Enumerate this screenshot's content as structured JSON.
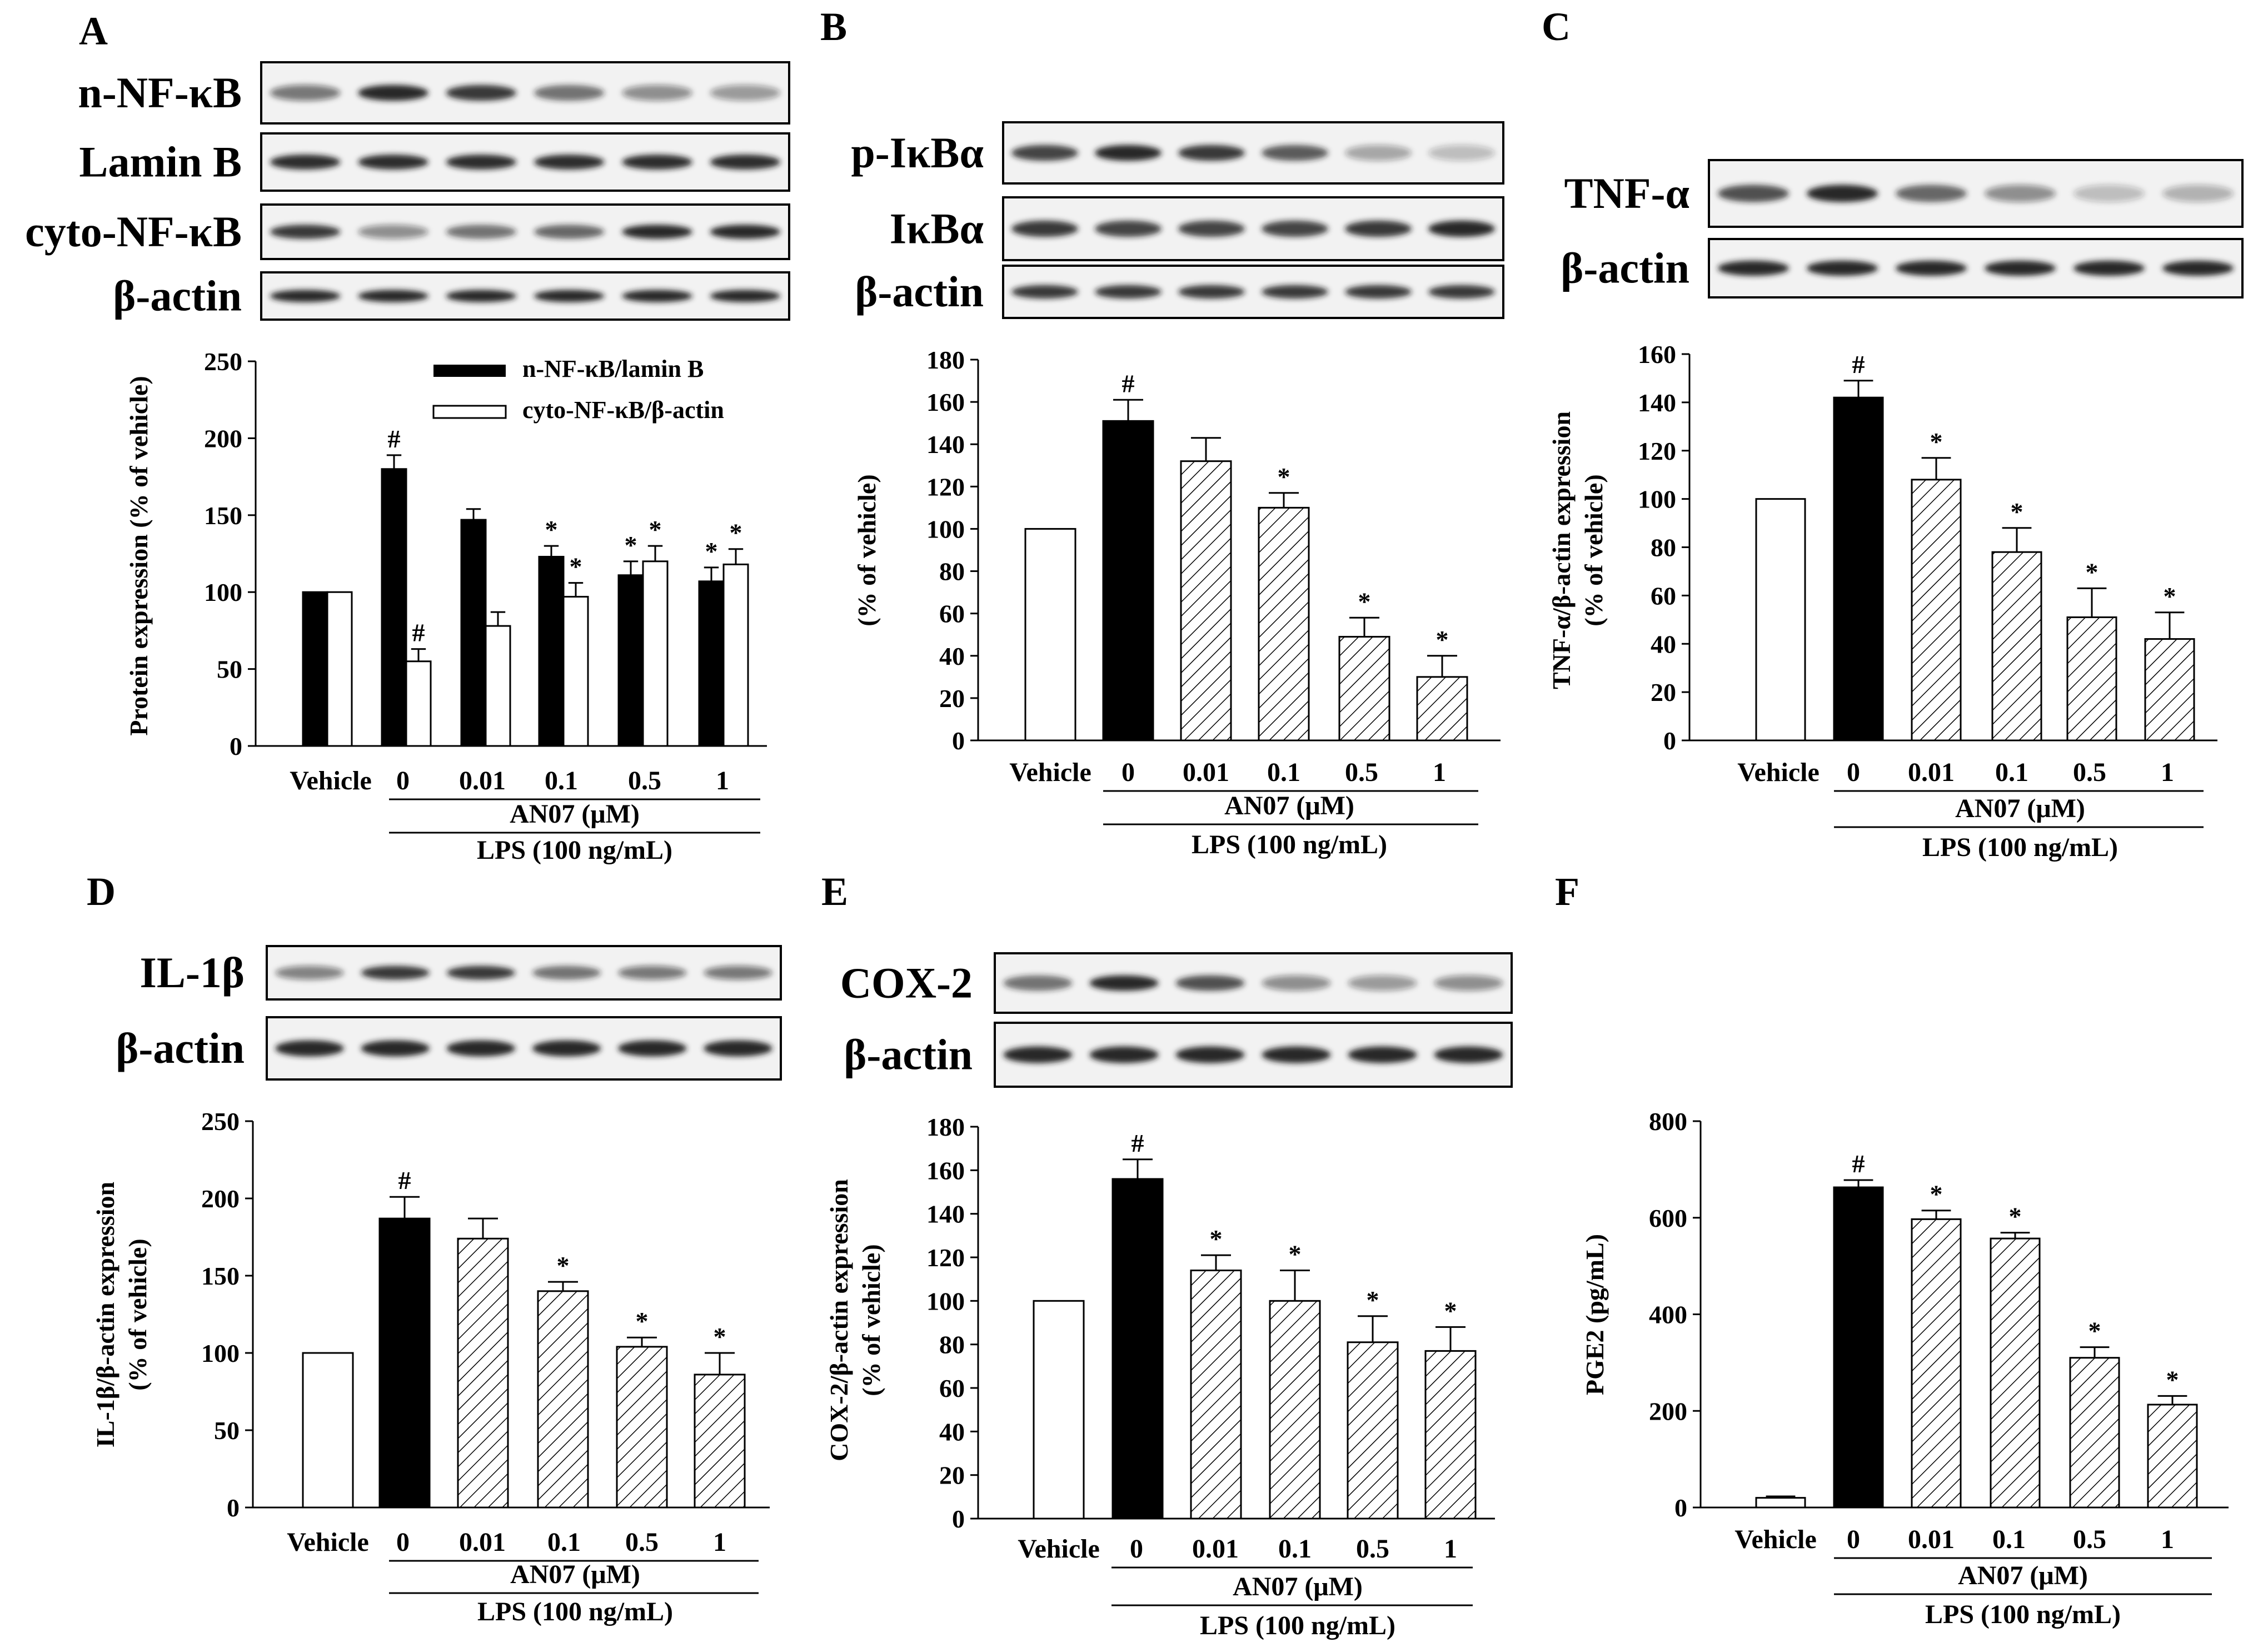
{
  "colors": {
    "ink": "#000000",
    "paper": "#ffffff",
    "band": "#1a1a1a"
  },
  "chart_data": [
    {
      "panel": "A",
      "type": "bar",
      "grouped": true,
      "blots": [
        "n-NF-κB",
        "Lamin B",
        "cyto-NF-κB",
        "β-actin"
      ],
      "categories": [
        "Vehicle",
        "0",
        "0.01",
        "0.1",
        "0.5",
        "1"
      ],
      "series": [
        {
          "name": "n-NF-κB/lamin B",
          "fill": "solid",
          "values": [
            100,
            180,
            147,
            123,
            111,
            107
          ],
          "errors": [
            0,
            9,
            7,
            7,
            9,
            9
          ],
          "marks": [
            "",
            "#",
            "",
            "*",
            "*",
            "*"
          ]
        },
        {
          "name": "cyto-NF-κB/β-actin",
          "fill": "open",
          "values": [
            100,
            55,
            78,
            97,
            120,
            118
          ],
          "errors": [
            0,
            8,
            9,
            9,
            10,
            10
          ],
          "marks": [
            "",
            "#",
            "",
            "*",
            "*",
            "*"
          ]
        }
      ],
      "ylabel": "Protein expression (% of vehicle)",
      "ylim": [
        0,
        250
      ],
      "yticks": [
        0,
        50,
        100,
        150,
        200,
        250
      ],
      "group1": "AN07 (μM)",
      "group2": "LPS (100 ng/mL)"
    },
    {
      "panel": "B",
      "type": "bar",
      "blots": [
        "p-IκBα",
        "IκBα",
        "β-actin"
      ],
      "categories": [
        "Vehicle",
        "0",
        "0.01",
        "0.1",
        "0.5",
        "1"
      ],
      "values": [
        100,
        151,
        132,
        110,
        49,
        30
      ],
      "errors": [
        0,
        10,
        11,
        7,
        9,
        10
      ],
      "marks": [
        "",
        "#",
        "",
        "*",
        "*",
        "*"
      ],
      "ylabel": "(% of vehicle)",
      "ylim": [
        0,
        180
      ],
      "yticks": [
        0,
        20,
        40,
        60,
        80,
        100,
        120,
        140,
        160,
        180
      ],
      "group1": "AN07 (μM)",
      "group2": "LPS (100 ng/mL)"
    },
    {
      "panel": "C",
      "type": "bar",
      "blots": [
        "TNF-α",
        "β-actin"
      ],
      "categories": [
        "Vehicle",
        "0",
        "0.01",
        "0.1",
        "0.5",
        "1"
      ],
      "values": [
        100,
        142,
        108,
        78,
        51,
        42
      ],
      "errors": [
        0,
        7,
        9,
        10,
        12,
        11
      ],
      "marks": [
        "",
        "#",
        "*",
        "*",
        "*",
        "*"
      ],
      "ylabel": [
        "TNF-α/β-actin expression",
        "(% of vehicle)"
      ],
      "ylim": [
        0,
        160
      ],
      "yticks": [
        0,
        20,
        40,
        60,
        80,
        100,
        120,
        140,
        160
      ],
      "group1": "AN07 (μM)",
      "group2": "LPS (100 ng/mL)"
    },
    {
      "panel": "D",
      "type": "bar",
      "blots": [
        "IL-1β",
        "β-actin"
      ],
      "categories": [
        "Vehicle",
        "0",
        "0.01",
        "0.1",
        "0.5",
        "1"
      ],
      "values": [
        100,
        187,
        174,
        140,
        104,
        86
      ],
      "errors": [
        0,
        14,
        13,
        6,
        6,
        14
      ],
      "marks": [
        "",
        "#",
        "",
        "*",
        "*",
        "*"
      ],
      "ylabel": [
        "IL-1β/β-actin expression",
        "(% of vehicle)"
      ],
      "ylim": [
        0,
        250
      ],
      "yticks": [
        0,
        50,
        100,
        150,
        200,
        250
      ],
      "group1": "AN07 (μM)",
      "group2": "LPS (100 ng/mL)"
    },
    {
      "panel": "E",
      "type": "bar",
      "blots": [
        "COX-2",
        "β-actin"
      ],
      "categories": [
        "Vehicle",
        "0",
        "0.01",
        "0.1",
        "0.5",
        "1"
      ],
      "values": [
        100,
        156,
        114,
        100,
        81,
        77
      ],
      "errors": [
        0,
        9,
        7,
        14,
        12,
        11
      ],
      "marks": [
        "",
        "#",
        "*",
        "*",
        "*",
        "*"
      ],
      "ylabel": [
        "COX-2/β-actin expression",
        "(% of vehicle)"
      ],
      "ylim": [
        0,
        180
      ],
      "yticks": [
        0,
        20,
        40,
        60,
        80,
        100,
        120,
        140,
        160,
        180
      ],
      "group1": "AN07 (μM)",
      "group2": "LPS (100 ng/mL)"
    },
    {
      "panel": "F",
      "type": "bar",
      "blots": [],
      "categories": [
        "Vehicle",
        "0",
        "0.01",
        "0.1",
        "0.5",
        "1"
      ],
      "values": [
        20,
        663,
        597,
        557,
        310,
        213
      ],
      "errors": [
        3,
        15,
        18,
        12,
        22,
        18
      ],
      "marks": [
        "",
        "#",
        "*",
        "*",
        "*",
        "*"
      ],
      "ylabel": "PGE2 (pg/mL)",
      "ylim": [
        0,
        800
      ],
      "yticks": [
        0,
        200,
        400,
        600,
        800
      ],
      "group1": "AN07 (μM)",
      "group2": "LPS (100 ng/mL)"
    }
  ]
}
